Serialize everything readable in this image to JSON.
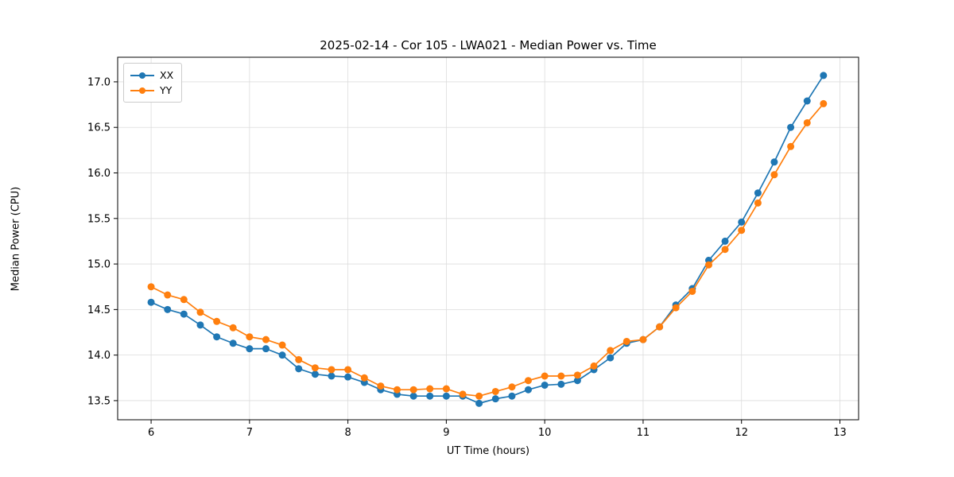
{
  "chart_data": {
    "type": "line",
    "title": "2025-02-14 - Cor 105 - LWA021 - Median Power vs. Time",
    "xlabel": "UT Time (hours)",
    "ylabel": "Median Power (CPU)",
    "xlim": [
      5.66,
      13.19
    ],
    "ylim": [
      13.29,
      17.27
    ],
    "xticks": [
      6,
      7,
      8,
      9,
      10,
      11,
      12,
      13
    ],
    "yticks": [
      13.5,
      14.0,
      14.5,
      15.0,
      15.5,
      16.0,
      16.5,
      17.0
    ],
    "grid": true,
    "legend_position": "upper left",
    "x": [
      6.0,
      6.167,
      6.333,
      6.5,
      6.667,
      6.833,
      7.0,
      7.167,
      7.333,
      7.5,
      7.667,
      7.833,
      8.0,
      8.167,
      8.333,
      8.5,
      8.667,
      8.833,
      9.0,
      9.167,
      9.333,
      9.5,
      9.667,
      9.833,
      10.0,
      10.167,
      10.333,
      10.5,
      10.667,
      10.833,
      11.0,
      11.167,
      11.333,
      11.5,
      11.667,
      11.833,
      12.0,
      12.167,
      12.333,
      12.5,
      12.667,
      12.833
    ],
    "series": [
      {
        "name": "XX",
        "color": "#1f77b4",
        "values": [
          14.58,
          14.5,
          14.45,
          14.33,
          14.2,
          14.13,
          14.07,
          14.07,
          14.0,
          13.85,
          13.79,
          13.77,
          13.76,
          13.7,
          13.62,
          13.57,
          13.55,
          13.55,
          13.55,
          13.55,
          13.47,
          13.52,
          13.55,
          13.62,
          13.67,
          13.68,
          13.72,
          13.84,
          13.97,
          14.13,
          14.17,
          14.31,
          14.55,
          14.73,
          15.04,
          15.25,
          15.46,
          15.78,
          16.12,
          16.5,
          16.79,
          17.07
        ]
      },
      {
        "name": "YY",
        "color": "#ff7f0e",
        "values": [
          14.75,
          14.66,
          14.61,
          14.47,
          14.37,
          14.3,
          14.2,
          14.17,
          14.11,
          13.95,
          13.86,
          13.84,
          13.84,
          13.75,
          13.66,
          13.62,
          13.62,
          13.63,
          13.63,
          13.57,
          13.55,
          13.6,
          13.65,
          13.72,
          13.77,
          13.77,
          13.78,
          13.88,
          14.05,
          14.15,
          14.17,
          14.31,
          14.52,
          14.7,
          14.99,
          15.16,
          15.37,
          15.67,
          15.98,
          16.29,
          16.55,
          16.76
        ]
      }
    ],
    "style": {
      "grid_color": "#dcdcdc",
      "frame_color": "#000000",
      "tick_label_size": 13,
      "marker_radius": 4.5,
      "line_width": 1.7
    }
  }
}
